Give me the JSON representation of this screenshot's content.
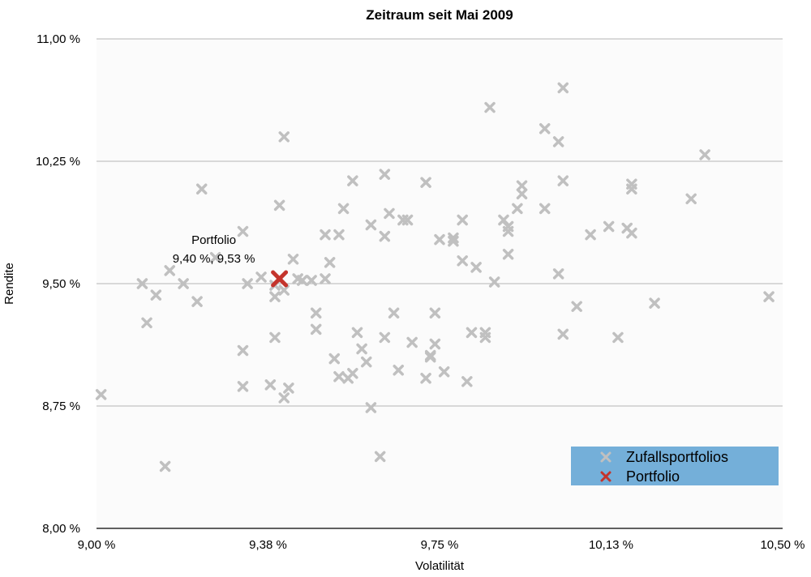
{
  "chart_data": {
    "type": "scatter",
    "title": "Zeitraum seit Mai 2009",
    "xlabel": "Volatilität",
    "ylabel": "Rendite",
    "xlim": [
      9.0,
      10.5
    ],
    "ylim": [
      8.0,
      11.0
    ],
    "x_ticks": [
      {
        "value": 9.0,
        "label": "9,00 %"
      },
      {
        "value": 9.375,
        "label": "9,38 %"
      },
      {
        "value": 9.75,
        "label": "9,75 %"
      },
      {
        "value": 10.125,
        "label": "10,13 %"
      },
      {
        "value": 10.5,
        "label": "10,50 %"
      }
    ],
    "y_ticks": [
      {
        "value": 8.0,
        "label": "8,00 %"
      },
      {
        "value": 8.75,
        "label": "8,75 %"
      },
      {
        "value": 9.5,
        "label": "9,50 %"
      },
      {
        "value": 10.25,
        "label": "10,25 %"
      },
      {
        "value": 11.0,
        "label": "11,00 %"
      }
    ],
    "grid": "horizontal",
    "legend_position": "bottom-right",
    "legend_background": "#74afd9",
    "series": [
      {
        "name": "Zufallsportfolios",
        "color": "#c0c0c0",
        "points": [
          [
            9.01,
            8.82
          ],
          [
            9.15,
            8.38
          ],
          [
            9.11,
            9.26
          ],
          [
            9.13,
            9.43
          ],
          [
            9.16,
            9.58
          ],
          [
            9.19,
            9.5
          ],
          [
            9.22,
            9.39
          ],
          [
            9.1,
            9.5
          ],
          [
            9.26,
            9.66
          ],
          [
            9.23,
            10.08
          ],
          [
            9.32,
            9.82
          ],
          [
            9.33,
            9.5
          ],
          [
            9.32,
            9.09
          ],
          [
            9.32,
            8.87
          ],
          [
            9.38,
            8.88
          ],
          [
            9.41,
            8.8
          ],
          [
            9.42,
            8.86
          ],
          [
            9.39,
            9.17
          ],
          [
            9.39,
            9.42
          ],
          [
            9.41,
            9.46
          ],
          [
            9.44,
            9.53
          ],
          [
            9.43,
            9.65
          ],
          [
            9.47,
            9.52
          ],
          [
            9.48,
            9.32
          ],
          [
            9.48,
            9.22
          ],
          [
            9.5,
            9.53
          ],
          [
            9.5,
            9.8
          ],
          [
            9.51,
            9.63
          ],
          [
            9.52,
            9.04
          ],
          [
            9.53,
            8.93
          ],
          [
            9.53,
            9.8
          ],
          [
            9.54,
            9.96
          ],
          [
            9.56,
            10.13
          ],
          [
            9.55,
            8.92
          ],
          [
            9.56,
            8.95
          ],
          [
            9.57,
            9.2
          ],
          [
            9.58,
            9.1
          ],
          [
            9.59,
            9.02
          ],
          [
            9.6,
            8.74
          ],
          [
            9.6,
            9.86
          ],
          [
            9.62,
            8.44
          ],
          [
            9.63,
            9.79
          ],
          [
            9.63,
            9.17
          ],
          [
            9.63,
            10.17
          ],
          [
            9.64,
            9.93
          ],
          [
            9.65,
            9.32
          ],
          [
            9.66,
            8.97
          ],
          [
            9.67,
            9.89
          ],
          [
            9.68,
            9.89
          ],
          [
            9.69,
            9.14
          ],
          [
            9.72,
            10.12
          ],
          [
            9.72,
            8.92
          ],
          [
            9.73,
            9.05
          ],
          [
            9.73,
            9.06
          ],
          [
            9.74,
            9.13
          ],
          [
            9.74,
            9.32
          ],
          [
            9.75,
            9.77
          ],
          [
            9.76,
            8.96
          ],
          [
            9.78,
            9.76
          ],
          [
            9.78,
            9.78
          ],
          [
            9.8,
            9.89
          ],
          [
            9.8,
            9.64
          ],
          [
            9.81,
            8.9
          ],
          [
            9.82,
            9.2
          ],
          [
            9.83,
            9.6
          ],
          [
            9.85,
            9.17
          ],
          [
            9.85,
            9.2
          ],
          [
            9.87,
            9.51
          ],
          [
            9.86,
            10.58
          ],
          [
            9.89,
            9.89
          ],
          [
            9.9,
            9.82
          ],
          [
            9.9,
            9.85
          ],
          [
            9.9,
            9.68
          ],
          [
            9.92,
            9.96
          ],
          [
            9.93,
            10.05
          ],
          [
            9.93,
            10.1
          ],
          [
            9.98,
            10.45
          ],
          [
            9.98,
            9.96
          ],
          [
            10.01,
            10.37
          ],
          [
            10.01,
            9.56
          ],
          [
            10.02,
            10.7
          ],
          [
            10.02,
            10.13
          ],
          [
            10.02,
            9.19
          ],
          [
            10.05,
            9.36
          ],
          [
            10.08,
            9.8
          ],
          [
            10.12,
            9.85
          ],
          [
            10.14,
            9.17
          ],
          [
            10.16,
            9.84
          ],
          [
            10.17,
            10.08
          ],
          [
            10.17,
            10.11
          ],
          [
            10.17,
            9.81
          ],
          [
            10.22,
            9.38
          ],
          [
            10.3,
            10.02
          ],
          [
            10.33,
            10.29
          ],
          [
            10.47,
            9.42
          ],
          [
            9.41,
            10.4
          ],
          [
            9.4,
            9.98
          ],
          [
            9.45,
            9.52
          ],
          [
            9.39,
            9.49
          ],
          [
            9.36,
            9.54
          ]
        ]
      },
      {
        "name": "Portfolio",
        "color": "#c4342c",
        "points": [
          [
            9.4,
            9.53
          ]
        ]
      }
    ],
    "annotations": [
      {
        "title": "Portfolio",
        "text": "9,40 %, 9,53 %",
        "x": 9.4,
        "y": 9.53
      }
    ]
  }
}
